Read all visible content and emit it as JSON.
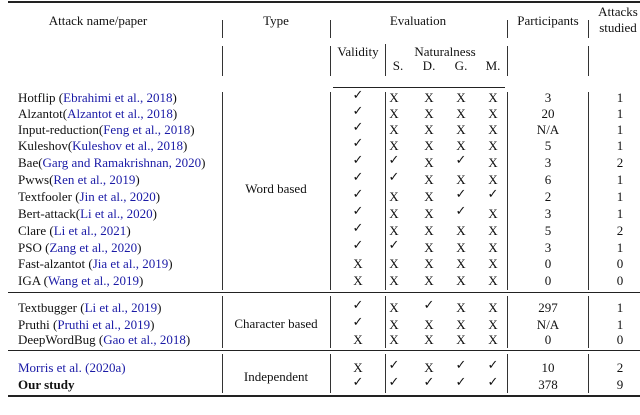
{
  "table": {
    "headers": {
      "attack": "Attack name/paper",
      "type": "Type",
      "evaluation": "Evaluation",
      "participants": "Participants",
      "attacks_studied_1": "Attacks",
      "attacks_studied_2": "studied",
      "validity": "Validity",
      "naturalness": "Naturalness",
      "sub": [
        "S.",
        "D.",
        "G.",
        "M."
      ]
    },
    "groups": [
      {
        "type": "Word based",
        "rows": [
          {
            "name": "Hotflip (",
            "cite": "Ebrahimi et al., 2018",
            "close": ")",
            "validity": "check",
            "nat": [
              "X",
              "X",
              "X",
              "X"
            ],
            "participants": "3",
            "attacks": "1"
          },
          {
            "name": "Alzantot(",
            "cite": "Alzantot et al., 2018",
            "close": ")",
            "validity": "check",
            "nat": [
              "X",
              "X",
              "X",
              "X"
            ],
            "participants": "20",
            "attacks": "1"
          },
          {
            "name": "Input-reduction(",
            "cite": "Feng et al., 2018",
            "close": ")",
            "validity": "check",
            "nat": [
              "X",
              "X",
              "X",
              "X"
            ],
            "participants": "N/A",
            "attacks": "1"
          },
          {
            "name": "Kuleshov(",
            "cite": "Kuleshov et al., 2018",
            "close": ")",
            "validity": "check",
            "nat": [
              "X",
              "X",
              "X",
              "X"
            ],
            "participants": "5",
            "attacks": "1"
          },
          {
            "name": "Bae(",
            "cite": "Garg and Ramakrishnan, 2020",
            "close": ")",
            "validity": "check",
            "nat": [
              "check",
              "X",
              "check",
              "X"
            ],
            "participants": "3",
            "attacks": "2"
          },
          {
            "name": "Pwws(",
            "cite": "Ren et al., 2019",
            "close": ")",
            "validity": "check",
            "nat": [
              "check",
              "X",
              "X",
              "X"
            ],
            "participants": "6",
            "attacks": "1"
          },
          {
            "name": "Textfooler (",
            "cite": "Jin et al., 2020",
            "close": ")",
            "validity": "check",
            "nat": [
              "X",
              "X",
              "check",
              "check"
            ],
            "participants": "2",
            "attacks": "1"
          },
          {
            "name": "Bert-attack(",
            "cite": "Li et al., 2020",
            "close": ")",
            "validity": "check",
            "nat": [
              "X",
              "X",
              "check",
              "X"
            ],
            "participants": "3",
            "attacks": "1"
          },
          {
            "name": "Clare (",
            "cite": "Li et al., 2021",
            "close": ")",
            "validity": "check",
            "nat": [
              "X",
              "X",
              "X",
              "X"
            ],
            "participants": "5",
            "attacks": "2"
          },
          {
            "name": "PSO (",
            "cite": "Zang et al., 2020",
            "close": ")",
            "validity": "check",
            "nat": [
              "check",
              "X",
              "X",
              "X"
            ],
            "participants": "3",
            "attacks": "1"
          },
          {
            "name": "Fast-alzantot (",
            "cite": "Jia et al., 2019",
            "close": ")",
            "validity": "X",
            "nat": [
              "X",
              "X",
              "X",
              "X"
            ],
            "participants": "0",
            "attacks": "0"
          },
          {
            "name": "IGA (",
            "cite": "Wang et al., 2019",
            "close": ")",
            "validity": "X",
            "nat": [
              "X",
              "X",
              "X",
              "X"
            ],
            "participants": "0",
            "attacks": "0"
          }
        ]
      },
      {
        "type": "Character based",
        "rows": [
          {
            "name": "Textbugger (",
            "cite": "Li et al., 2019",
            "close": ")",
            "validity": "check",
            "nat": [
              "X",
              "check",
              "X",
              "X"
            ],
            "participants": "297",
            "attacks": "1"
          },
          {
            "name": "Pruthi (",
            "cite": "Pruthi et al., 2019",
            "close": ")",
            "validity": "check",
            "nat": [
              "X",
              "X",
              "X",
              "X"
            ],
            "participants": "N/A",
            "attacks": "1"
          },
          {
            "name": "DeepWordBug (",
            "cite": "Gao et al., 2018",
            "close": ")",
            "validity": "X",
            "nat": [
              "X",
              "X",
              "X",
              "X"
            ],
            "participants": "0",
            "attacks": "0"
          }
        ]
      },
      {
        "type": "Independent",
        "rows": [
          {
            "name": "",
            "cite": "Morris et al. (2020a)",
            "close": "",
            "validity": "X",
            "nat": [
              "check",
              "X",
              "check",
              "check"
            ],
            "participants": "10",
            "attacks": "2"
          },
          {
            "name": "Our study",
            "cite": "",
            "close": "",
            "bold": true,
            "validity": "check",
            "nat": [
              "check",
              "check",
              "check",
              "check"
            ],
            "participants": "378",
            "attacks": "9"
          }
        ]
      }
    ],
    "symbols": {
      "check": "✓",
      "X": "X"
    },
    "colors": {
      "citation": "#1a1aa6",
      "text": "#111111"
    }
  }
}
